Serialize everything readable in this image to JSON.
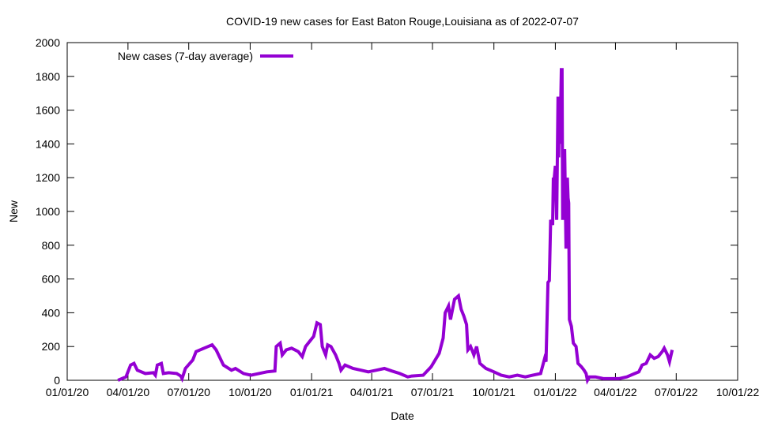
{
  "chart_data": {
    "type": "line",
    "title": "COVID-19 new cases for East Baton Rouge,Louisiana as of 2022-07-07",
    "xlabel": "Date",
    "ylabel": "New",
    "ylim": [
      0,
      2000
    ],
    "yticks": [
      0,
      200,
      400,
      600,
      800,
      1000,
      1200,
      1400,
      1600,
      1800,
      2000
    ],
    "x_unit": "days since 2020-01-01",
    "xlim": [
      0,
      1004
    ],
    "xticks": [
      {
        "day": 0,
        "label": "01/01/20"
      },
      {
        "day": 91,
        "label": "04/01/20"
      },
      {
        "day": 182,
        "label": "07/01/20"
      },
      {
        "day": 274,
        "label": "10/01/20"
      },
      {
        "day": 366,
        "label": "01/01/21"
      },
      {
        "day": 456,
        "label": "04/01/21"
      },
      {
        "day": 547,
        "label": "07/01/21"
      },
      {
        "day": 639,
        "label": "10/01/21"
      },
      {
        "day": 731,
        "label": "01/01/22"
      },
      {
        "day": 821,
        "label": "04/01/22"
      },
      {
        "day": 912,
        "label": "07/01/22"
      },
      {
        "day": 1004,
        "label": "10/01/22"
      }
    ],
    "grid": false,
    "legend_position": "top-left",
    "series": [
      {
        "name": "New cases (7-day average)",
        "color": "#9400d3",
        "x": [
          76,
          88,
          95,
          100,
          105,
          117,
          129,
          132,
          135,
          141,
          144,
          152,
          164,
          170,
          172,
          177,
          188,
          193,
          205,
          211,
          217,
          223,
          234,
          246,
          252,
          264,
          275,
          287,
          299,
          311,
          313,
          319,
          322,
          328,
          336,
          346,
          352,
          357,
          363,
          369,
          374,
          379,
          382,
          387,
          390,
          395,
          402,
          407,
          410,
          416,
          428,
          440,
          451,
          463,
          475,
          486,
          498,
          510,
          516,
          533,
          545,
          557,
          563,
          566,
          571,
          574,
          580,
          586,
          590,
          594,
          598,
          600,
          604,
          609,
          613,
          618,
          627,
          639,
          650,
          662,
          674,
          686,
          697,
          709,
          715,
          717,
          720,
          722,
          724,
          727,
          728,
          729,
          731,
          733,
          735,
          736,
          737,
          738,
          740,
          741,
          742,
          743,
          745,
          747,
          749,
          750,
          751,
          752,
          755,
          758,
          762,
          765,
          770,
          774,
          777,
          779,
          782,
          791,
          803,
          815,
          826,
          838,
          850,
          856,
          861,
          867,
          873,
          879,
          885,
          891,
          894,
          899,
          902,
          906
        ],
        "values": [
          0,
          20,
          90,
          100,
          60,
          40,
          45,
          30,
          90,
          100,
          40,
          45,
          40,
          25,
          10,
          70,
          120,
          170,
          190,
          200,
          210,
          180,
          90,
          60,
          70,
          40,
          30,
          40,
          50,
          55,
          200,
          220,
          150,
          180,
          190,
          170,
          140,
          200,
          230,
          260,
          340,
          330,
          200,
          150,
          210,
          200,
          150,
          100,
          60,
          90,
          70,
          60,
          50,
          60,
          70,
          55,
          40,
          20,
          25,
          30,
          80,
          160,
          250,
          400,
          440,
          360,
          480,
          500,
          420,
          380,
          330,
          180,
          200,
          150,
          200,
          100,
          70,
          50,
          30,
          20,
          30,
          20,
          30,
          40,
          130,
          110,
          580,
          590,
          950,
          920,
          1200,
          1180,
          1270,
          950,
          1680,
          1320,
          1680,
          1400,
          1840,
          1840,
          950,
          1360,
          1360,
          780,
          1200,
          1080,
          1050,
          360,
          320,
          220,
          200,
          100,
          80,
          60,
          40,
          0,
          20,
          20,
          10,
          10,
          10,
          20,
          40,
          50,
          90,
          100,
          150,
          130,
          140,
          170,
          190,
          150,
          110,
          180
        ]
      }
    ]
  }
}
